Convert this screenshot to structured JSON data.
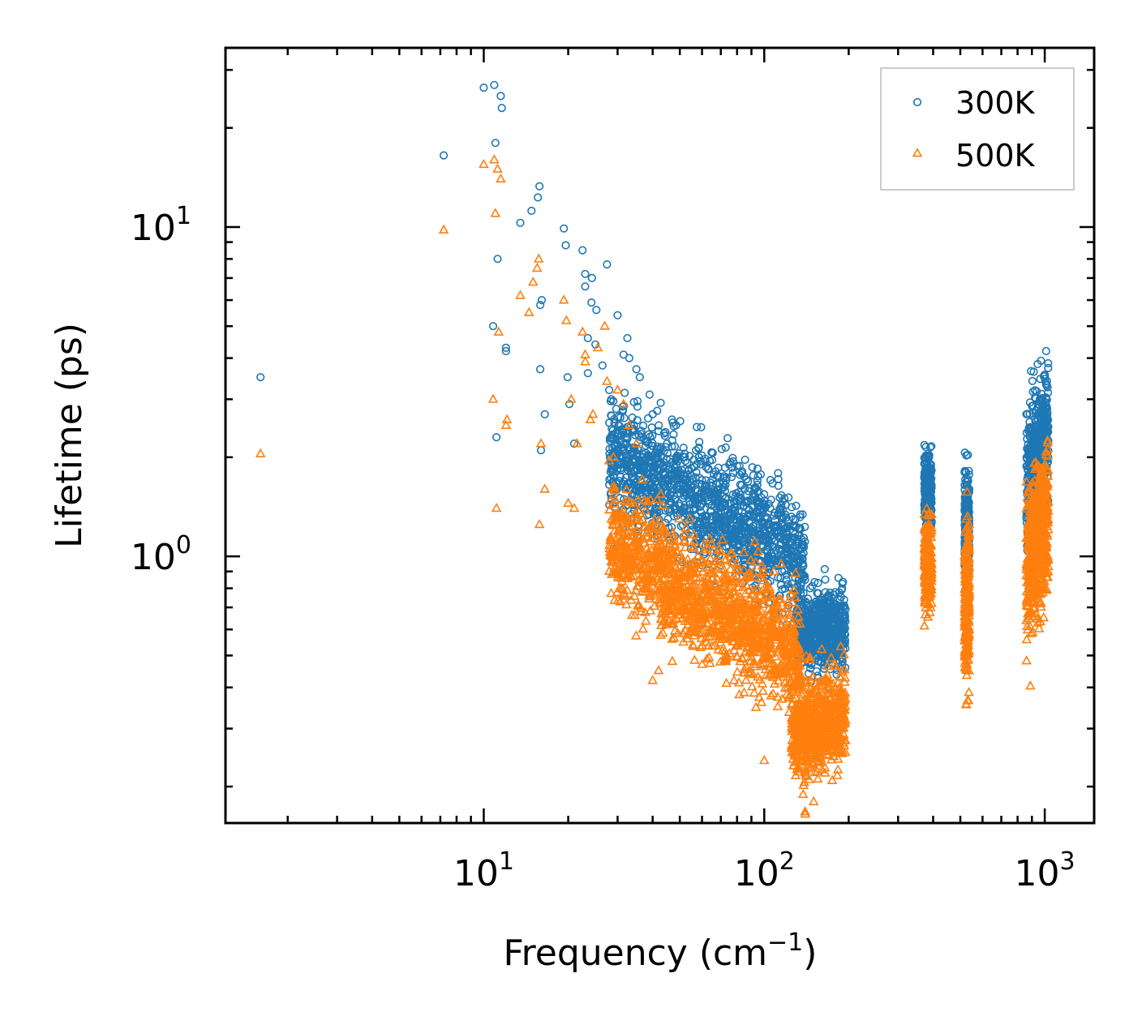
{
  "chart_data": {
    "type": "scatter",
    "title": "",
    "xlabel": "Frequency (cm",
    "xlabel_sup": "−1",
    "xlabel_close": ")",
    "ylabel": "Lifetime (ps)",
    "xscale": "log",
    "yscale": "log",
    "xlim": [
      1.2,
      1500
    ],
    "ylim": [
      0.155,
      35
    ],
    "x_ticks": [
      {
        "value": 10,
        "base": "10",
        "exp": "1"
      },
      {
        "value": 100,
        "base": "10",
        "exp": "2"
      },
      {
        "value": 1000,
        "base": "10",
        "exp": "3"
      }
    ],
    "y_ticks": [
      {
        "value": 1,
        "base": "10",
        "exp": "0"
      },
      {
        "value": 10,
        "base": "10",
        "exp": "1"
      }
    ],
    "legend_position": "top-right",
    "series": [
      {
        "name": "300K",
        "marker": "circle",
        "color": "#1f77b4",
        "points": [
          [
            1.6,
            3.5
          ],
          [
            7.2,
            16.5
          ],
          [
            10.0,
            26.5
          ],
          [
            10.9,
            27.0
          ],
          [
            11.5,
            25.0
          ],
          [
            11.6,
            23.0
          ],
          [
            11.0,
            18.0
          ],
          [
            11.2,
            8.0
          ],
          [
            10.8,
            5.0
          ],
          [
            12.0,
            4.2
          ],
          [
            12.0,
            4.3
          ],
          [
            11.1,
            2.3
          ],
          [
            13.5,
            10.3
          ],
          [
            14.8,
            11.2
          ],
          [
            15.6,
            12.3
          ],
          [
            15.8,
            13.3
          ],
          [
            15.9,
            3.7
          ],
          [
            15.9,
            5.8
          ],
          [
            16.1,
            6.0
          ],
          [
            16.0,
            2.1
          ],
          [
            16.5,
            2.7
          ],
          [
            19.3,
            9.9
          ],
          [
            19.6,
            8.8
          ],
          [
            19.9,
            3.5
          ],
          [
            20.2,
            2.9
          ],
          [
            21.0,
            2.2
          ],
          [
            22.5,
            8.5
          ],
          [
            23.0,
            7.2
          ],
          [
            23.0,
            6.6
          ],
          [
            24.2,
            5.9
          ],
          [
            25.2,
            5.6
          ],
          [
            24.3,
            7.0
          ],
          [
            23.5,
            4.6
          ],
          [
            23.5,
            3.6
          ],
          [
            25.0,
            4.4
          ],
          [
            26.5,
            3.8
          ],
          [
            27.5,
            7.7
          ],
          [
            28.0,
            3.2
          ],
          [
            28.5,
            3.0
          ],
          [
            30.0,
            5.4
          ],
          [
            31.5,
            4.1
          ],
          [
            32.5,
            4.6
          ],
          [
            33.0,
            4.0
          ],
          [
            35.0,
            3.7
          ],
          [
            36.0,
            3.5
          ],
          [
            39.0,
            3.1
          ],
          [
            40.0,
            2.7
          ],
          [
            42.0,
            2.4
          ],
          [
            45.0,
            2.2
          ],
          [
            48.5,
            2.5
          ],
          [
            52.0,
            2.05
          ],
          [
            55.0,
            1.85
          ],
          [
            62.0,
            1.7
          ],
          [
            75.0,
            1.9
          ],
          [
            95.0,
            1.75
          ],
          [
            105.0,
            1.4
          ],
          [
            118.0,
            1.5
          ],
          [
            165.0,
            0.85
          ],
          [
            190.0,
            0.48
          ],
          [
            160.0,
            0.65
          ],
          [
            170.0,
            0.72
          ],
          [
            130.0,
            0.55
          ],
          [
            140.0,
            0.6
          ],
          [
            150.0,
            0.5
          ],
          [
            180.0,
            0.58
          ],
          [
            120.0,
            0.62
          ]
        ],
        "clusters": [
          {
            "x": [
              28,
              140
            ],
            "y_center": [
              2.0,
              1.0
            ],
            "y_spread": 1.6,
            "count": 1400
          },
          {
            "x": [
              130,
              195
            ],
            "y_center": [
              0.6,
              0.6
            ],
            "y_spread": 1.35,
            "count": 650
          },
          {
            "x": [
              372,
              395
            ],
            "y_center": [
              1.6,
              1.6
            ],
            "y_spread": 1.35,
            "count": 260
          },
          {
            "x": [
              518,
              538
            ],
            "y_center": [
              1.2,
              1.2
            ],
            "y_spread": 1.6,
            "count": 260
          },
          {
            "x": [
              860,
              1030
            ],
            "y_center": [
              1.6,
              2.4
            ],
            "y_spread": 1.8,
            "count": 520
          }
        ]
      },
      {
        "name": "500K",
        "marker": "triangle",
        "color": "#ff7f0e",
        "points": [
          [
            1.6,
            2.05
          ],
          [
            7.2,
            9.8
          ],
          [
            10.0,
            15.5
          ],
          [
            10.9,
            16.0
          ],
          [
            11.2,
            15.0
          ],
          [
            11.5,
            14.0
          ],
          [
            11.0,
            11.0
          ],
          [
            11.3,
            4.8
          ],
          [
            10.8,
            3.0
          ],
          [
            12.0,
            2.5
          ],
          [
            12.1,
            2.6
          ],
          [
            11.1,
            1.4
          ],
          [
            13.5,
            6.2
          ],
          [
            14.5,
            5.5
          ],
          [
            15.0,
            6.8
          ],
          [
            15.5,
            7.5
          ],
          [
            15.7,
            8.0
          ],
          [
            16.0,
            2.2
          ],
          [
            16.5,
            1.6
          ],
          [
            15.8,
            1.25
          ],
          [
            19.3,
            6.0
          ],
          [
            19.7,
            5.2
          ],
          [
            20.0,
            1.45
          ],
          [
            20.5,
            3.0
          ],
          [
            21.0,
            1.4
          ],
          [
            21.5,
            2.2
          ],
          [
            22.5,
            4.8
          ],
          [
            23.0,
            4.1
          ],
          [
            23.0,
            3.9
          ],
          [
            24.0,
            2.6
          ],
          [
            24.5,
            2.7
          ],
          [
            25.5,
            4.3
          ],
          [
            27.0,
            5.0
          ],
          [
            27.5,
            3.4
          ],
          [
            28.0,
            1.95
          ],
          [
            29.0,
            2.0
          ],
          [
            30.0,
            3.2
          ],
          [
            31.5,
            2.9
          ],
          [
            33.0,
            2.5
          ],
          [
            35.0,
            2.2
          ],
          [
            40.0,
            0.42
          ],
          [
            42.0,
            0.45
          ],
          [
            47.0,
            0.48
          ],
          [
            60.0,
            0.47
          ],
          [
            78.0,
            0.42
          ],
          [
            100.0,
            0.24
          ],
          [
            140.0,
            0.165
          ],
          [
            150.0,
            0.18
          ]
        ],
        "clusters": [
          {
            "x": [
              28,
              135
            ],
            "y_center": [
              1.1,
              0.5
            ],
            "y_spread": 1.6,
            "count": 1400
          },
          {
            "x": [
              125,
              195
            ],
            "y_center": [
              0.3,
              0.32
            ],
            "y_spread": 1.5,
            "count": 650
          },
          {
            "x": [
              372,
              395
            ],
            "y_center": [
              0.95,
              0.95
            ],
            "y_spread": 1.4,
            "count": 260
          },
          {
            "x": [
              518,
              538
            ],
            "y_center": [
              0.72,
              0.72
            ],
            "y_spread": 1.8,
            "count": 260
          },
          {
            "x": [
              860,
              1030
            ],
            "y_center": [
              0.95,
              1.3
            ],
            "y_spread": 1.9,
            "count": 520
          }
        ]
      }
    ]
  }
}
